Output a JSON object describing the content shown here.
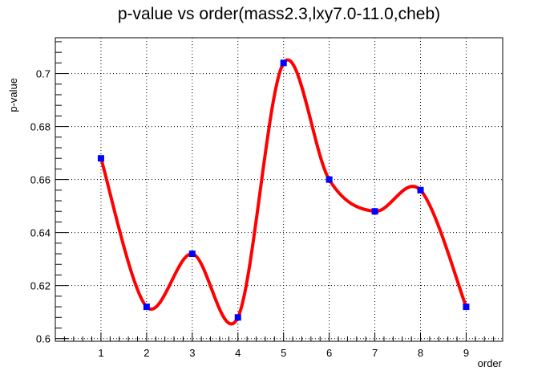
{
  "chart_data": {
    "type": "line",
    "title": "p-value vs order(mass2.3,lxy7.0-11.0,cheb)",
    "xlabel": "order",
    "ylabel": "p-value",
    "x": [
      1,
      2,
      3,
      4,
      5,
      6,
      7,
      8,
      9
    ],
    "series": [
      {
        "values": [
          0.668,
          0.612,
          0.632,
          0.608,
          0.704,
          0.66,
          0.648,
          0.656,
          0.612
        ]
      }
    ],
    "xlim": [
      0,
      9.8
    ],
    "ylim": [
      0.599,
      0.7135
    ],
    "x_ticks": [
      "1",
      "2",
      "3",
      "4",
      "5",
      "6",
      "7",
      "8",
      "9"
    ],
    "y_ticks": [
      "0.6",
      "0.62",
      "0.64",
      "0.66",
      "0.68",
      "0.7"
    ],
    "y_tick_values": [
      0.6,
      0.62,
      0.64,
      0.66,
      0.68,
      0.7
    ],
    "grid": true,
    "line_style": "smooth spline",
    "colors": {
      "line": "#ff0000",
      "marker": "#0000ff",
      "grid": "#000000",
      "axis": "#000000"
    }
  }
}
